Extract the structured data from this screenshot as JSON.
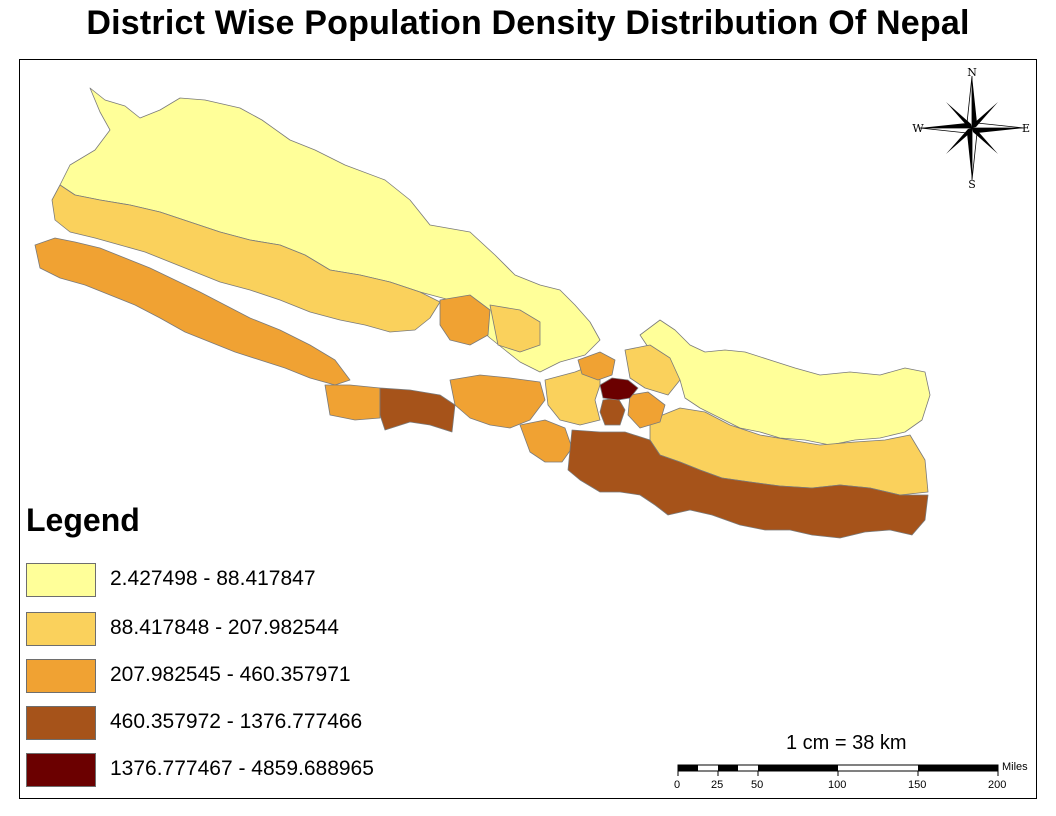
{
  "title": "District Wise Population Density Distribution Of Nepal",
  "legend": {
    "title": "Legend",
    "classes": [
      {
        "label": "2.427498 - 88.417847",
        "color": "#ffff99"
      },
      {
        "label": "88.417848 - 207.982544",
        "color": "#fad15c"
      },
      {
        "label": "207.982545 - 460.357971",
        "color": "#f0a233"
      },
      {
        "label": "460.357972 - 1376.777466",
        "color": "#a6531a"
      },
      {
        "label": "1376.777467 - 4859.688965",
        "color": "#6b0000"
      }
    ]
  },
  "compass": {
    "n": "N",
    "s": "S",
    "e": "E",
    "w": "W"
  },
  "scale": {
    "text": "1 cm = 38 km",
    "unit": "Miles",
    "ticks": [
      "0",
      "25",
      "50",
      "100",
      "150",
      "200"
    ]
  }
}
